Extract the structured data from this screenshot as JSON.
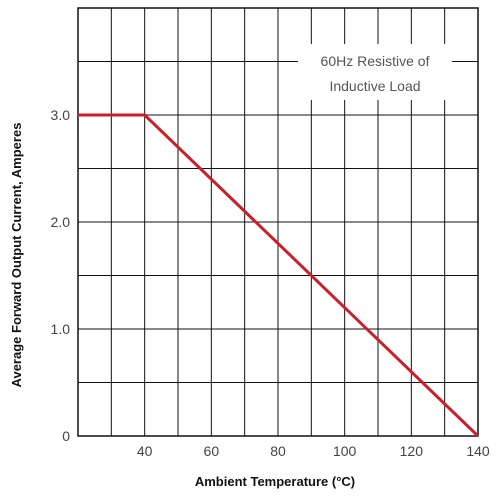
{
  "chart_data": {
    "type": "line",
    "title": "",
    "xlabel": "Ambient Temperature (°C)",
    "ylabel": "Average Forward Output Current, Amperes",
    "xlim": [
      20,
      140
    ],
    "ylim": [
      0,
      4
    ],
    "x_ticks": [
      "40",
      "60",
      "80",
      "100",
      "120",
      "140"
    ],
    "x_tick_values": [
      40,
      60,
      80,
      100,
      120,
      140
    ],
    "y_ticks": [
      "0",
      "1.0",
      "2.0",
      "3.0"
    ],
    "y_tick_values": [
      0,
      1,
      2,
      3
    ],
    "grid": true,
    "annotation": [
      "60Hz Resistive of",
      "Inductive Load"
    ],
    "series": [
      {
        "x": [
          20,
          40,
          140
        ],
        "y": [
          3.0,
          3.0,
          0
        ],
        "color": "#c8202a"
      }
    ]
  }
}
